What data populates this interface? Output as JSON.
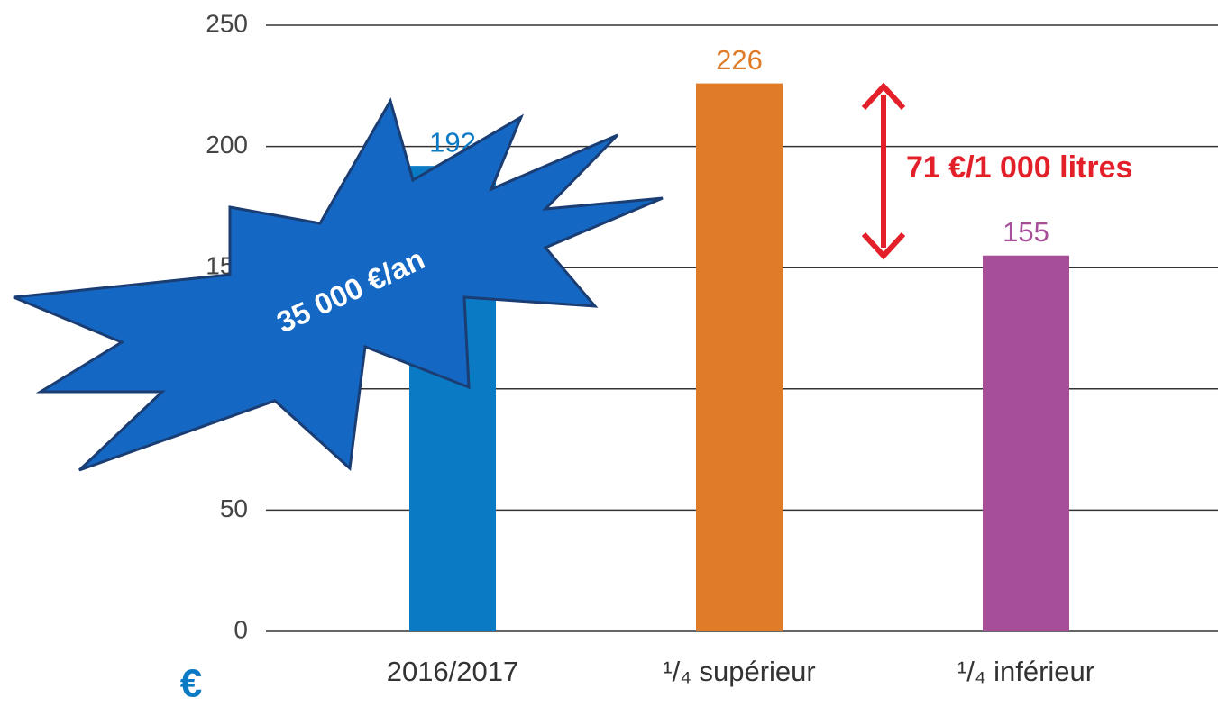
{
  "chart_data": {
    "type": "bar",
    "categories": [
      "2016/2017",
      "¹/₄ supérieur",
      "¹/₄ inférieur"
    ],
    "values": [
      192,
      226,
      155
    ],
    "colors": [
      "#0b7ac4",
      "#e07c28",
      "#a64f98"
    ],
    "ylim": [
      0,
      250
    ],
    "yticks": [
      0,
      50,
      100,
      150,
      200,
      250
    ],
    "grid": true,
    "y_label": "€",
    "annotations": [
      "71 €/1 000 litres",
      "35 000 €/an"
    ]
  }
}
